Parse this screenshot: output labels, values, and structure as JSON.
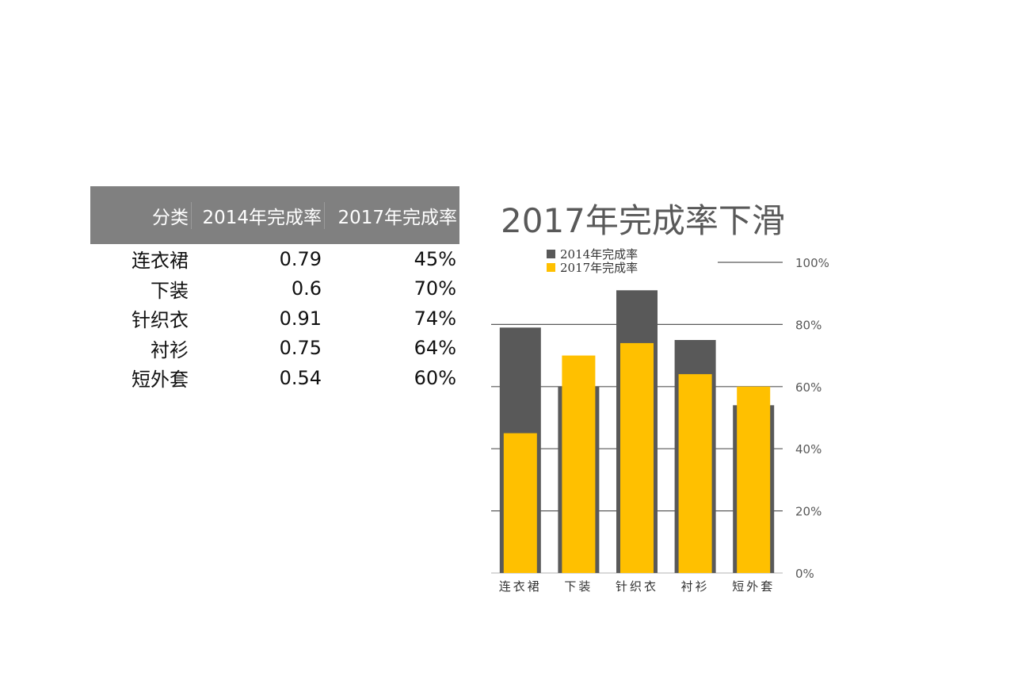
{
  "table": {
    "headers": [
      "分类",
      "2014年完成率",
      "2017年完成率"
    ],
    "rows": [
      [
        "连衣裙",
        "0.79",
        "45%"
      ],
      [
        "下装",
        "0.6",
        "70%"
      ],
      [
        "针织衣",
        "0.91",
        "74%"
      ],
      [
        "衬衫",
        "0.75",
        "64%"
      ],
      [
        "短外套",
        "0.54",
        "60%"
      ]
    ]
  },
  "chart_data": {
    "type": "bar",
    "title": "2017年完成率下滑",
    "categories": [
      "连衣裙",
      "下装",
      "针织衣",
      "衬衫",
      "短外套"
    ],
    "series": [
      {
        "name": "2014年完成率",
        "values": [
          0.79,
          0.6,
          0.91,
          0.75,
          0.54
        ],
        "color": "#595959"
      },
      {
        "name": "2017年完成率",
        "values": [
          0.45,
          0.7,
          0.74,
          0.64,
          0.6
        ],
        "color": "#FFC000"
      }
    ],
    "ylim": [
      0,
      1
    ],
    "y_ticks": [
      "0%",
      "20%",
      "40%",
      "60%",
      "80%",
      "100%"
    ],
    "y_axis_position": "right",
    "grid": true,
    "legend_position": "top-left",
    "overlapped_bars": true
  }
}
